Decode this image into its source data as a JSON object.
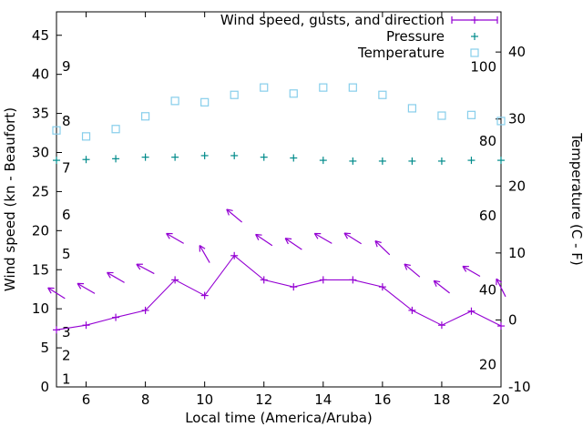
{
  "chart_data": {
    "type": "line",
    "title": "",
    "x": [
      5,
      6,
      7,
      8,
      9,
      10,
      11,
      12,
      13,
      14,
      15,
      16,
      17,
      18,
      19,
      20
    ],
    "series": [
      {
        "name": "Wind speed, gusts, and direction",
        "marker": "plus-line-arrows",
        "color": "#9400d3",
        "axis": "left",
        "values": [
          7.3,
          7.9,
          8.9,
          9.8,
          13.7,
          11.7,
          16.8,
          13.7,
          12.8,
          13.7,
          13.7,
          12.8,
          9.8,
          7.9,
          9.7,
          7.8
        ],
        "gusts": [
          12.0,
          12.6,
          14.0,
          15.1,
          19.0,
          17.0,
          21.9,
          18.8,
          18.3,
          19.0,
          19.0,
          17.8,
          14.9,
          12.8,
          14.8,
          12.7
        ],
        "arrow_angles_deg": [
          148,
          150,
          150,
          152,
          150,
          120,
          140,
          146,
          146,
          150,
          148,
          136,
          140,
          142,
          150,
          117
        ]
      },
      {
        "name": "Pressure",
        "marker": "plus",
        "color": "#008b8b",
        "axis": "left",
        "values": [
          29.0,
          29.1,
          29.2,
          29.4,
          29.4,
          29.6,
          29.6,
          29.4,
          29.3,
          29.0,
          28.9,
          28.9,
          28.9,
          28.9,
          29.0,
          29.0
        ]
      },
      {
        "name": "Temperature",
        "marker": "square",
        "color": "#87ceeb",
        "axis": "right_celsius",
        "values_c": [
          28.3,
          27.4,
          28.5,
          30.4,
          32.7,
          32.5,
          33.6,
          34.7,
          33.8,
          34.7,
          34.7,
          33.6,
          31.6,
          30.5,
          30.6,
          29.7
        ]
      }
    ],
    "axes": {
      "x": {
        "label": "Local time (America/Aruba)",
        "range": [
          5,
          20
        ],
        "ticks": [
          6,
          8,
          10,
          12,
          14,
          16,
          18,
          20
        ]
      },
      "y_left": {
        "label": "Wind speed (kn - Beaufort)",
        "range": [
          0,
          48
        ],
        "ticks": [
          0,
          5,
          10,
          15,
          20,
          25,
          30,
          35,
          40,
          45
        ],
        "beaufort_labels": [
          {
            "label": "1",
            "kn": 1
          },
          {
            "label": "2",
            "kn": 4
          },
          {
            "label": "3",
            "kn": 7
          },
          {
            "label": "5",
            "kn": 17
          },
          {
            "label": "6",
            "kn": 22
          },
          {
            "label": "7",
            "kn": 28
          },
          {
            "label": "8",
            "kn": 34
          },
          {
            "label": "9",
            "kn": 41
          }
        ]
      },
      "y_right": {
        "label": "Temperature (C - F)",
        "range_c": [
          -10,
          46
        ],
        "ticks_c": [
          -10,
          0,
          10,
          20,
          30,
          40
        ],
        "fahrenheit_labels": [
          20,
          40,
          60,
          80,
          100
        ]
      },
      "grid": false
    },
    "legend": {
      "position": "top-right",
      "entries": [
        {
          "label": "Wind speed, gusts, and direction",
          "sample": "errorline",
          "color": "#9400d3"
        },
        {
          "label": "Pressure",
          "sample": "plus",
          "color": "#008b8b"
        },
        {
          "label": "Temperature",
          "sample": "square",
          "color": "#87ceeb"
        }
      ]
    },
    "colors": {
      "wind": "#9400d3",
      "pressure": "#008b8b",
      "temperature": "#87ceeb",
      "axis": "#000000",
      "background": "#ffffff"
    }
  }
}
